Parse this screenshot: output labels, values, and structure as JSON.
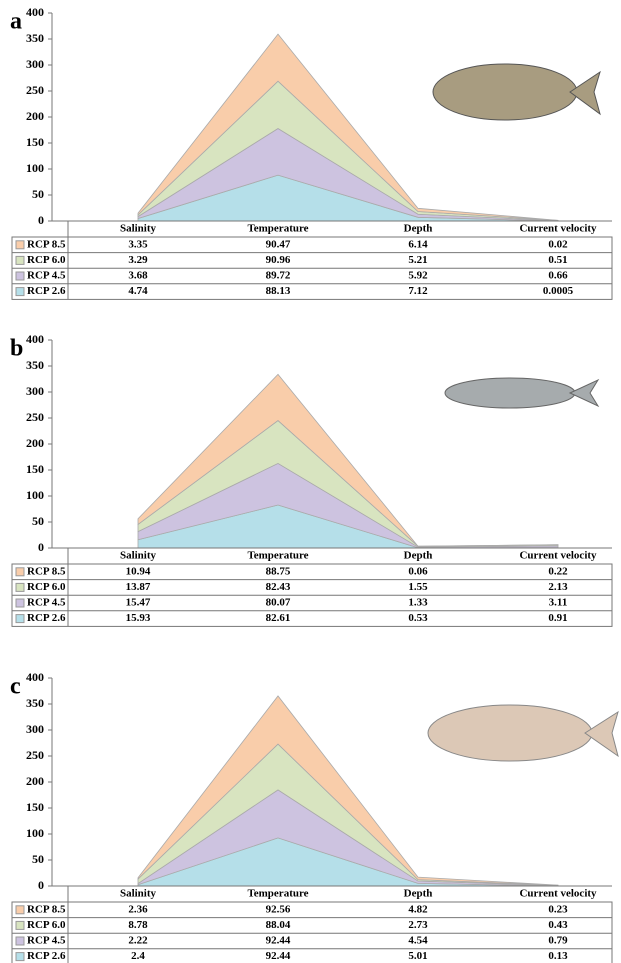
{
  "chart_data": [
    {
      "type": "area",
      "label": "a",
      "categories": [
        "Salinity",
        "Temperature",
        "Depth",
        "Current velocity"
      ],
      "series": [
        {
          "name": "RCP 8.5",
          "color": "#f9cdaa",
          "values": [
            3.35,
            90.47,
            6.14,
            0.02
          ]
        },
        {
          "name": "RCP 6.0",
          "color": "#d8e4c0",
          "values": [
            3.29,
            90.96,
            5.21,
            0.51
          ]
        },
        {
          "name": "RCP 4.5",
          "color": "#cdc3e0",
          "values": [
            3.68,
            89.72,
            5.92,
            0.66
          ]
        },
        {
          "name": "RCP 2.6",
          "color": "#b5dfe9",
          "values": [
            4.74,
            88.13,
            7.12,
            0.0005
          ]
        }
      ],
      "ylim": [
        0,
        400
      ],
      "yticks": [
        0,
        50,
        100,
        150,
        200,
        250,
        300,
        350,
        400
      ]
    },
    {
      "type": "area",
      "label": "b",
      "categories": [
        "Salinity",
        "Temperature",
        "Depth",
        "Current velocity"
      ],
      "series": [
        {
          "name": "RCP 8.5",
          "color": "#f9cdaa",
          "values": [
            10.94,
            88.75,
            0.06,
            0.22
          ]
        },
        {
          "name": "RCP 6.0",
          "color": "#d8e4c0",
          "values": [
            13.87,
            82.43,
            1.55,
            2.13
          ]
        },
        {
          "name": "RCP 4.5",
          "color": "#cdc3e0",
          "values": [
            15.47,
            80.07,
            1.33,
            3.11
          ]
        },
        {
          "name": "RCP 2.6",
          "color": "#b5dfe9",
          "values": [
            15.93,
            82.61,
            0.53,
            0.91
          ]
        }
      ],
      "ylim": [
        0,
        400
      ],
      "yticks": [
        0,
        50,
        100,
        150,
        200,
        250,
        300,
        350,
        400
      ]
    },
    {
      "type": "area",
      "label": "c",
      "categories": [
        "Salinity",
        "Temperature",
        "Depth",
        "Current velocity"
      ],
      "series": [
        {
          "name": "RCP 8.5",
          "color": "#f9cdaa",
          "values": [
            2.36,
            92.56,
            4.82,
            0.23
          ]
        },
        {
          "name": "RCP 6.0",
          "color": "#d8e4c0",
          "values": [
            8.78,
            88.04,
            2.73,
            0.43
          ]
        },
        {
          "name": "RCP 4.5",
          "color": "#cdc3e0",
          "values": [
            2.22,
            92.44,
            4.54,
            0.79
          ]
        },
        {
          "name": "RCP 2.6",
          "color": "#b5dfe9",
          "values": [
            2.4,
            92.44,
            5.01,
            0.13
          ]
        }
      ],
      "ylim": [
        0,
        400
      ],
      "yticks": [
        0,
        50,
        100,
        150,
        200,
        250,
        300,
        350,
        400
      ]
    }
  ]
}
